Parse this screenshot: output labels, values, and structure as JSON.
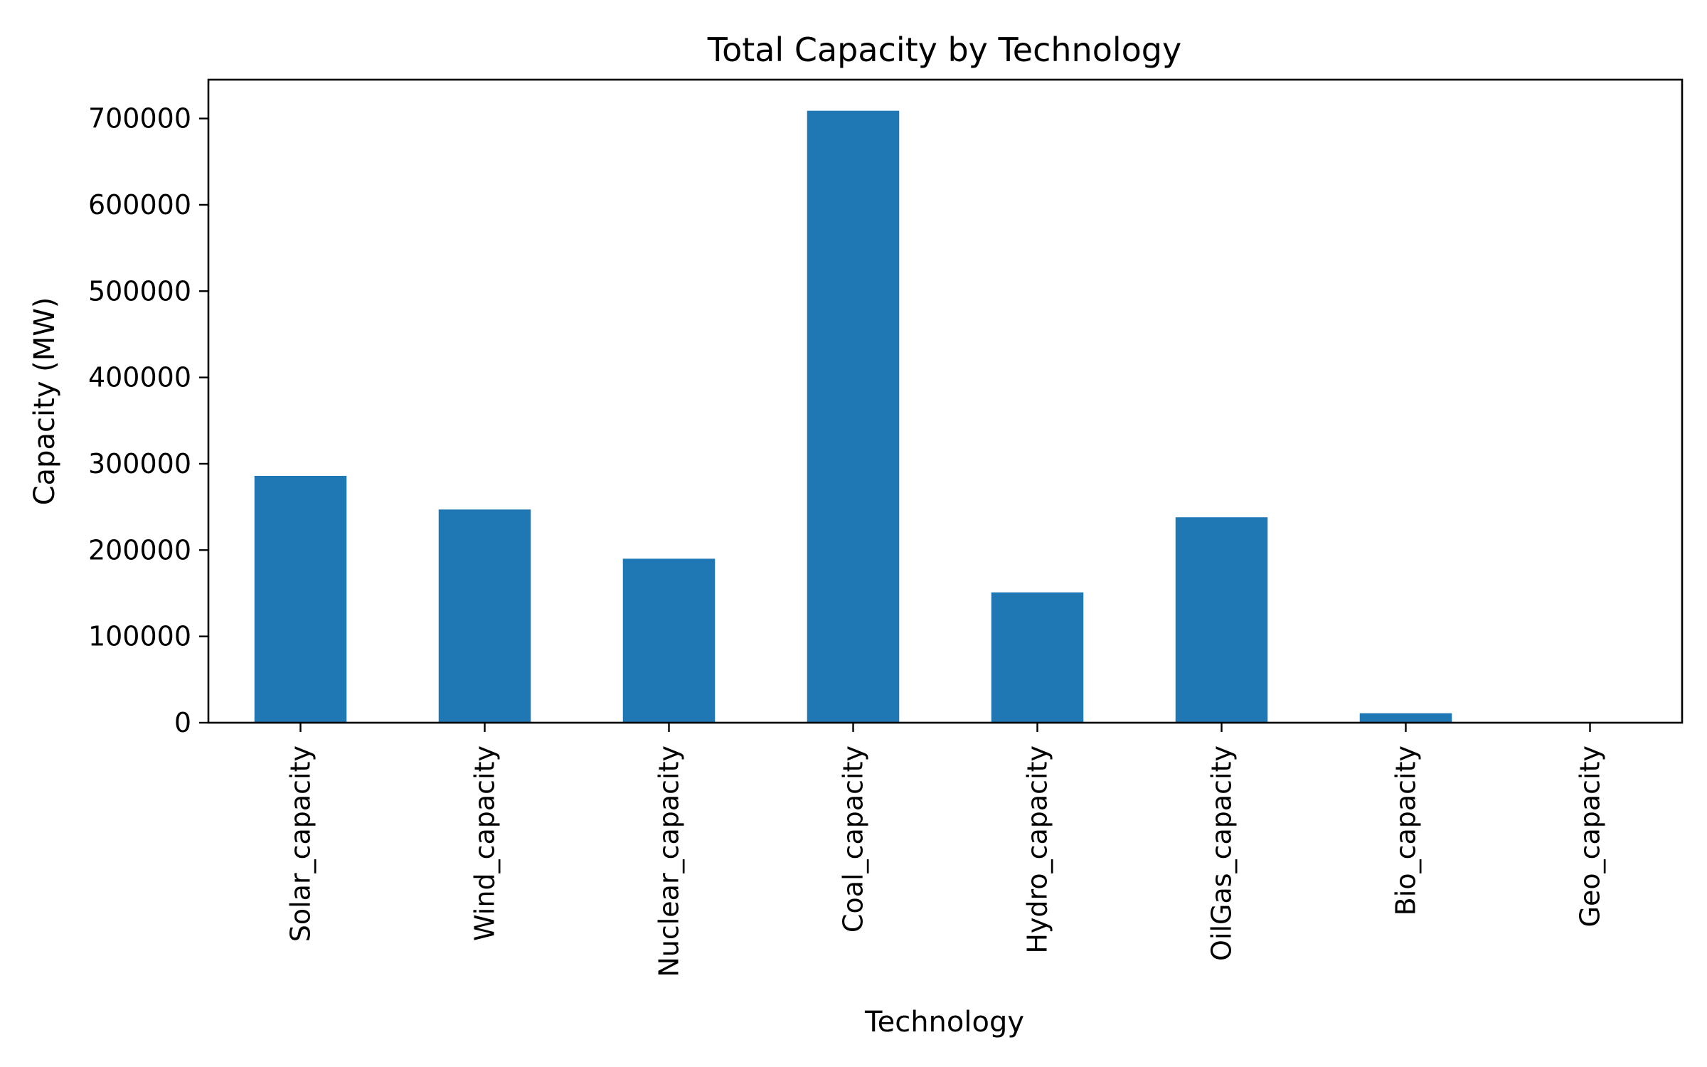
{
  "chart_data": {
    "type": "bar",
    "title": "Total Capacity by Technology",
    "xlabel": "Technology",
    "ylabel": "Capacity (MW)",
    "categories": [
      "Solar_capacity",
      "Wind_capacity",
      "Nuclear_capacity",
      "Coal_capacity",
      "Hydro_capacity",
      "OilGas_capacity",
      "Bio_capacity",
      "Geo_capacity"
    ],
    "values": [
      286000,
      247000,
      190000,
      709000,
      151000,
      238000,
      11000,
      0
    ],
    "ylim": [
      0,
      745000
    ],
    "yticks": [
      0,
      100000,
      200000,
      300000,
      400000,
      500000,
      600000,
      700000
    ],
    "bar_color": "#1f77b4",
    "grid": false,
    "legend": "none"
  }
}
